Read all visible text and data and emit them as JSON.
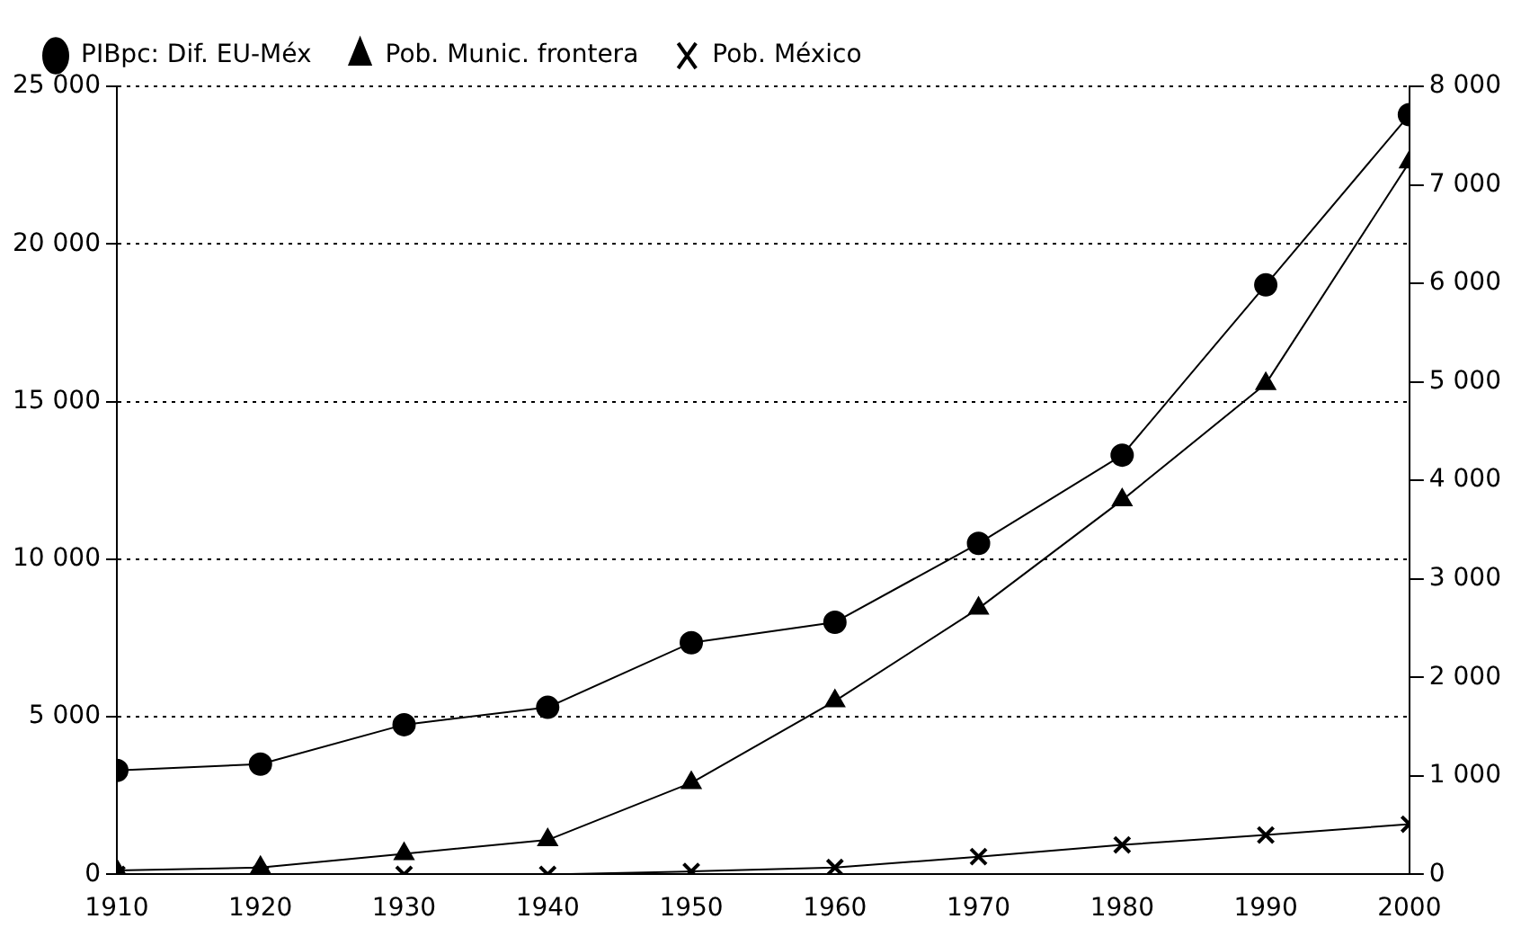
{
  "chart_data": {
    "type": "line",
    "x": [
      1910,
      1920,
      1930,
      1940,
      1950,
      1960,
      1970,
      1980,
      1990,
      2000
    ],
    "series": [
      {
        "name": "PIBpc: Dif. EU-Méx",
        "color": "#000000",
        "marker": "circle",
        "values": [
          3300,
          3500,
          4750,
          5300,
          7350,
          8000,
          10500,
          13300,
          18700,
          24100
        ]
      },
      {
        "name": "Pob. Munic. frontera",
        "color": "#000000",
        "marker": "triangle",
        "axis": "y2",
        "values": [
          40,
          70,
          210,
          350,
          930,
          1760,
          2700,
          3800,
          4980,
          7230
        ]
      },
      {
        "name": "Pob. México",
        "color": "#000000",
        "marker": "cross",
        "axis": "y2",
        "values": [
          0,
          0,
          0,
          0,
          30,
          70,
          180,
          300,
          400,
          510
        ]
      }
    ],
    "xlim": [
      1910,
      2000
    ],
    "xticks": [
      1910,
      1920,
      1930,
      1940,
      1950,
      1960,
      1970,
      1980,
      1990,
      2000
    ],
    "ylim": [
      0,
      25000
    ],
    "yticks": [
      {
        "value": 0,
        "label": "0"
      },
      {
        "value": 5000,
        "label": "5 000"
      },
      {
        "value": 10000,
        "label": "10 000"
      },
      {
        "value": 15000,
        "label": "15 000"
      },
      {
        "value": 20000,
        "label": "20 000"
      },
      {
        "value": 25000,
        "label": "25 000"
      }
    ],
    "y2lim": [
      0,
      8000
    ],
    "y2ticks": [
      {
        "value": 0,
        "label": "0"
      },
      {
        "value": 1000,
        "label": "1 000"
      },
      {
        "value": 2000,
        "label": "2 000"
      },
      {
        "value": 3000,
        "label": "3 000"
      },
      {
        "value": 4000,
        "label": "4 000"
      },
      {
        "value": 5000,
        "label": "5 000"
      },
      {
        "value": 6000,
        "label": "6 000"
      },
      {
        "value": 7000,
        "label": "7 000"
      },
      {
        "value": 8000,
        "label": "8 000"
      }
    ],
    "grid": "y",
    "legend": "top",
    "line_style": "solid"
  }
}
